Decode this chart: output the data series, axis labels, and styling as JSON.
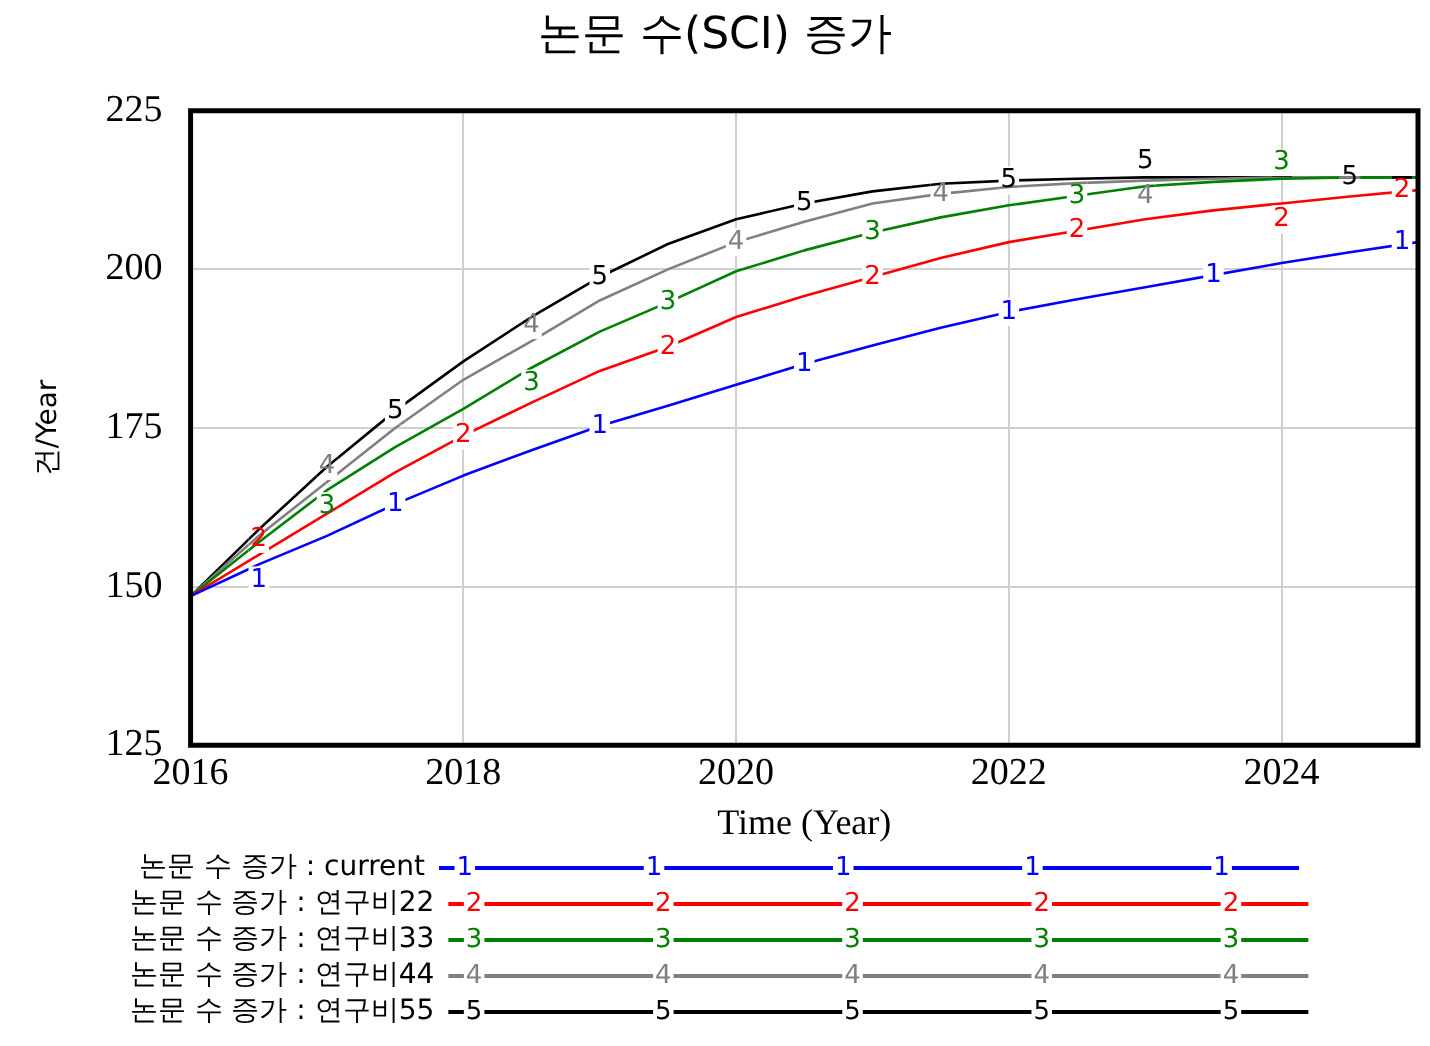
{
  "chart_data": {
    "type": "line",
    "title": "논문 수(SCI) 증가",
    "xlabel": "Time (Year)",
    "ylabel": "건/Year",
    "x": [
      2016,
      2016.5,
      2017,
      2017.5,
      2018,
      2018.5,
      2019,
      2019.5,
      2020,
      2020.5,
      2021,
      2021.5,
      2022,
      2022.5,
      2023,
      2023.5,
      2024,
      2024.5,
      2025
    ],
    "xlim": [
      2016,
      2025
    ],
    "xticks": [
      2016,
      2018,
      2020,
      2022,
      2024
    ],
    "ylim": [
      125,
      225
    ],
    "yticks": [
      125,
      150,
      175,
      200,
      225
    ],
    "grid": true,
    "legend": "bottom",
    "marker": "none",
    "line_style": "solid",
    "series": [
      {
        "name": "논문 수 증가 : current",
        "color": "#0000ff",
        "values": [
          148.5,
          153.5,
          158,
          163,
          167.5,
          171.5,
          175.3,
          178.5,
          181.8,
          185.1,
          188,
          190.8,
          193.3,
          195.3,
          197.2,
          199.1,
          201,
          202.7,
          204.3
        ]
      },
      {
        "name": "논문 수 증가 : 연구비22",
        "color": "#ff0000",
        "values": [
          148.5,
          155,
          161.5,
          168,
          173.8,
          179,
          184,
          187.8,
          192.5,
          195.8,
          198.8,
          201.8,
          204.3,
          206.1,
          207.9,
          209.3,
          210.4,
          211.5,
          212.5
        ]
      },
      {
        "name": "논문 수 증가 : 연구비33",
        "color": "#008000",
        "values": [
          148.5,
          157,
          165.2,
          172,
          178,
          184.5,
          190.2,
          194.8,
          199.7,
          203,
          205.8,
          208.2,
          210.1,
          211.6,
          213.1,
          213.8,
          214.3,
          214.5,
          214.5
        ]
      },
      {
        "name": "논문 수 증가 : 연구비44",
        "color": "#808080",
        "values": [
          148.5,
          158,
          166.5,
          175,
          182.6,
          188.7,
          195.1,
          200,
          204.3,
          207.5,
          210.4,
          211.9,
          213,
          213.6,
          214,
          214.3,
          214.5,
          214.5,
          214.5
        ]
      },
      {
        "name": "논문 수 증가 : 연구비55",
        "color": "#000000",
        "values": [
          148.5,
          159,
          168.9,
          177.7,
          185.5,
          192.5,
          198.8,
          204,
          207.9,
          210.4,
          212.3,
          213.5,
          214,
          214.3,
          214.5,
          214.5,
          214.5,
          214.5,
          214.5
        ]
      }
    ],
    "annotations": [
      {
        "text": "1",
        "x": 2016.5,
        "y": 153.5
      },
      {
        "text": "1",
        "x": 2017.5,
        "y": 163
      },
      {
        "text": "1",
        "x": 2019,
        "y": 175.3
      },
      {
        "text": "1",
        "x": 2020.5,
        "y": 185.1
      },
      {
        "text": "1",
        "x": 2022,
        "y": 193.3
      },
      {
        "text": "1",
        "x": 2023.5,
        "y": 199.1
      },
      {
        "text": "1",
        "x": 2025,
        "y": 204.3
      },
      {
        "text": "2",
        "x": 2016.5,
        "y": 155
      },
      {
        "text": "2",
        "x": 2018,
        "y": 173.8
      },
      {
        "text": "2",
        "x": 2019.5,
        "y": 187.8
      },
      {
        "text": "2",
        "x": 2021,
        "y": 198.8
      },
      {
        "text": "2",
        "x": 2022.5,
        "y": 206.1
      },
      {
        "text": "2",
        "x": 2024,
        "y": 210.4
      },
      {
        "text": "2",
        "x": 2025,
        "y": 212.5
      },
      {
        "text": "3",
        "x": 2017,
        "y": 165.2
      },
      {
        "text": "3",
        "x": 2018.5,
        "y": 184.5
      },
      {
        "text": "3",
        "x": 2019.5,
        "y": 194.8
      },
      {
        "text": "3",
        "x": 2021,
        "y": 205.8
      },
      {
        "text": "3",
        "x": 2022.5,
        "y": 211.6
      },
      {
        "text": "3",
        "x": 2024,
        "y": 214.3
      },
      {
        "text": "4",
        "x": 2017,
        "y": 166.5
      },
      {
        "text": "4",
        "x": 2018.5,
        "y": 188.7
      },
      {
        "text": "4",
        "x": 2020,
        "y": 204.3
      },
      {
        "text": "4",
        "x": 2021.5,
        "y": 211.9
      },
      {
        "text": "4",
        "x": 2023,
        "y": 214
      },
      {
        "text": "5",
        "x": 2017.5,
        "y": 177.7
      },
      {
        "text": "5",
        "x": 2019,
        "y": 198.8
      },
      {
        "text": "5",
        "x": 2020.5,
        "y": 210.4
      },
      {
        "text": "5",
        "x": 2022,
        "y": 214
      },
      {
        "text": "5",
        "x": 2023,
        "y": 214.5
      },
      {
        "text": "5",
        "x": 2024.5,
        "y": 214.5
      }
    ]
  }
}
